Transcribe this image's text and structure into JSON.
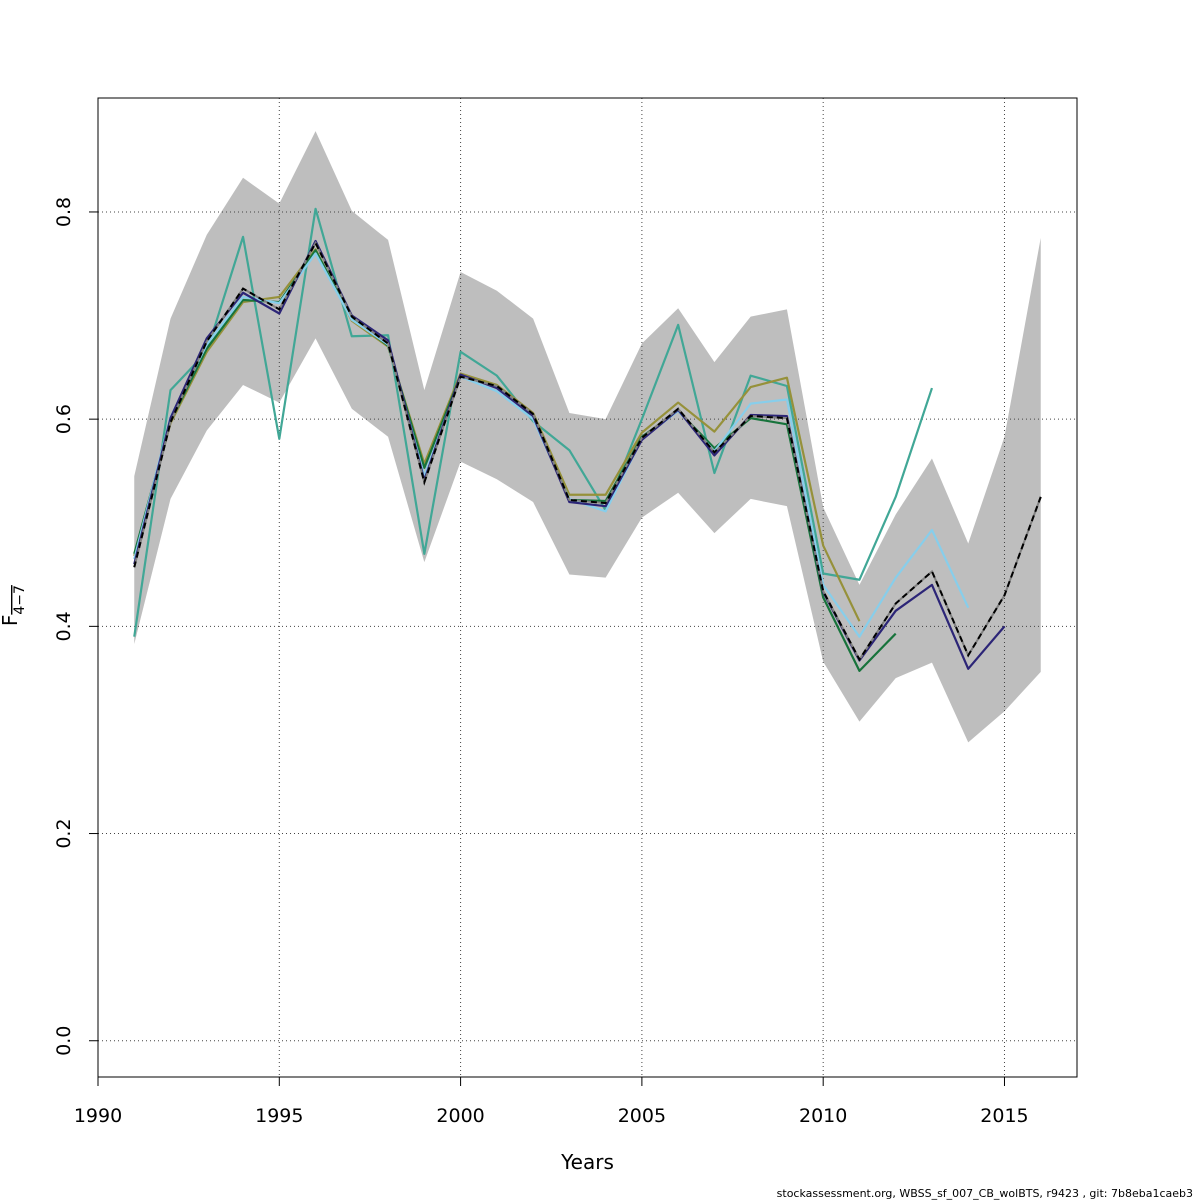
{
  "chart_data": {
    "type": "line",
    "title": "",
    "xlabel": "Years",
    "ylabel_main": "F",
    "ylabel_sub": "4−7",
    "xlim": [
      1990,
      2017
    ],
    "ylim": [
      -0.035,
      0.91
    ],
    "x_ticks": [
      1990,
      1995,
      2000,
      2005,
      2010,
      2015
    ],
    "x_tick_labels": [
      "1990",
      "1995",
      "2000",
      "2005",
      "2010",
      "2015"
    ],
    "y_ticks": [
      0.0,
      0.2,
      0.4,
      0.6,
      0.8
    ],
    "y_tick_labels": [
      "0.0",
      "0.2",
      "0.4",
      "0.6",
      "0.8"
    ],
    "grid": true,
    "footer": "stockassessment.org, WBSS_sf_007_CB_wolBTS, r9423 , git: 7b8eba1caeb3",
    "confidence_band": {
      "color": "#bebebe",
      "x": [
        1991,
        1992,
        1993,
        1994,
        1995,
        1996,
        1997,
        1998,
        1999,
        2000,
        2001,
        2002,
        2003,
        2004,
        2005,
        2006,
        2007,
        2008,
        2009,
        2010,
        2011,
        2012,
        2013,
        2014,
        2015,
        2016
      ],
      "upper": [
        0.545,
        0.697,
        0.778,
        0.833,
        0.808,
        0.878,
        0.801,
        0.773,
        0.628,
        0.742,
        0.724,
        0.697,
        0.606,
        0.6,
        0.673,
        0.707,
        0.655,
        0.699,
        0.706,
        0.515,
        0.44,
        0.508,
        0.562,
        0.48,
        0.583,
        0.775
      ],
      "lower": [
        0.383,
        0.523,
        0.589,
        0.633,
        0.616,
        0.678,
        0.61,
        0.583,
        0.462,
        0.559,
        0.542,
        0.52,
        0.45,
        0.447,
        0.505,
        0.529,
        0.49,
        0.523,
        0.516,
        0.366,
        0.308,
        0.35,
        0.365,
        0.288,
        0.318,
        0.356
      ]
    },
    "series": [
      {
        "color": "#000000",
        "dashed": true,
        "x0": 1991,
        "values": [
          0.457,
          0.597,
          0.675,
          0.726,
          0.706,
          0.77,
          0.699,
          0.673,
          0.539,
          0.641,
          0.632,
          0.605,
          0.522,
          0.519,
          0.582,
          0.61,
          0.568,
          0.603,
          0.601,
          0.434,
          0.368,
          0.422,
          0.453,
          0.372,
          0.43,
          0.525
        ]
      },
      {
        "color": "#2c2577",
        "dashed": false,
        "x0": 1991,
        "values": [
          0.46,
          0.601,
          0.678,
          0.722,
          0.702,
          0.772,
          0.7,
          0.676,
          0.541,
          0.643,
          0.63,
          0.603,
          0.52,
          0.516,
          0.58,
          0.609,
          0.565,
          0.604,
          0.603,
          0.433,
          0.367,
          0.415,
          0.44,
          0.359,
          0.4
        ]
      },
      {
        "color": "#87ceeb",
        "dashed": false,
        "x0": 1991,
        "values": [
          0.465,
          0.602,
          0.672,
          0.718,
          0.712,
          0.76,
          0.696,
          0.672,
          0.545,
          0.641,
          0.627,
          0.6,
          0.523,
          0.511,
          0.581,
          0.608,
          0.569,
          0.615,
          0.619,
          0.44,
          0.39,
          0.447,
          0.493,
          0.418
        ]
      },
      {
        "color": "#41a796",
        "dashed": false,
        "x0": 1991,
        "values": [
          0.39,
          0.628,
          0.665,
          0.776,
          0.581,
          0.803,
          0.68,
          0.681,
          0.47,
          0.665,
          0.642,
          0.598,
          0.57,
          0.512,
          0.6,
          0.691,
          0.548,
          0.642,
          0.632,
          0.451,
          0.445,
          0.525,
          0.63
        ]
      },
      {
        "color": "#17733b",
        "dashed": false,
        "x0": 1991,
        "values": [
          0.47,
          0.598,
          0.668,
          0.715,
          0.713,
          0.763,
          0.697,
          0.671,
          0.553,
          0.642,
          0.631,
          0.603,
          0.522,
          0.521,
          0.583,
          0.608,
          0.572,
          0.601,
          0.595,
          0.428,
          0.357,
          0.393
        ]
      },
      {
        "color": "#96913a",
        "dashed": false,
        "x0": 1991,
        "values": [
          0.468,
          0.596,
          0.665,
          0.713,
          0.718,
          0.764,
          0.695,
          0.67,
          0.557,
          0.644,
          0.633,
          0.606,
          0.527,
          0.527,
          0.587,
          0.616,
          0.588,
          0.631,
          0.64,
          0.478,
          0.405
        ]
      }
    ]
  }
}
